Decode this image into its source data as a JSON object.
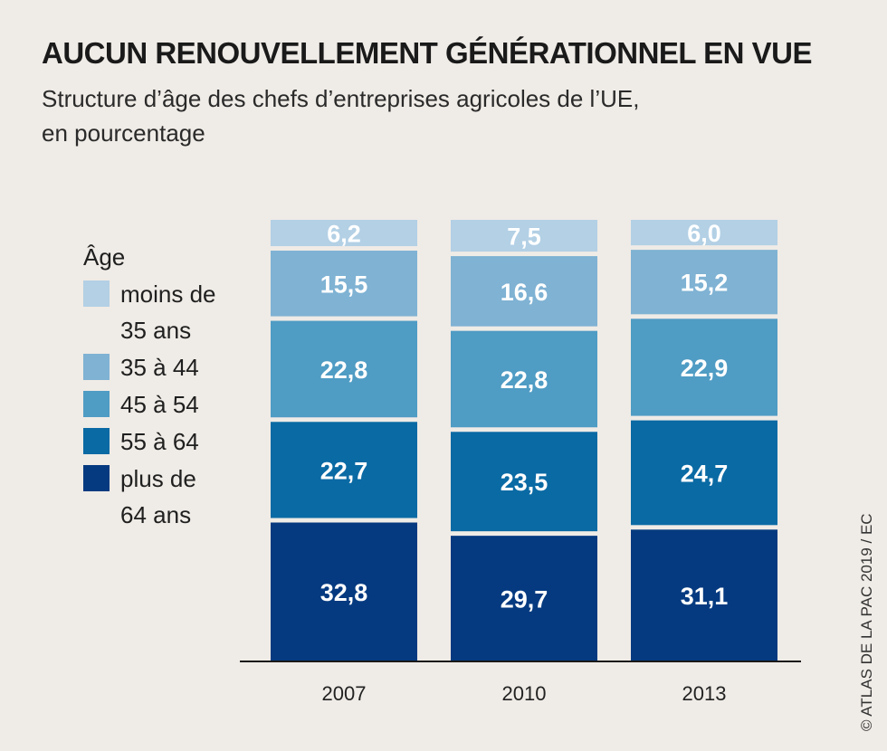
{
  "header": {
    "title": "AUCUN RENOUVELLEMENT GÉNÉRATIONNEL EN VUE",
    "subtitle_line1": "Structure d’âge des chefs d’entreprises agricoles de l’UE,",
    "subtitle_line2": "en pourcentage"
  },
  "credit": "© ATLAS DE LA PAC 2019 / EC",
  "chart_data": {
    "type": "bar",
    "stacked": true,
    "title": "AUCUN RENOUVELLEMENT GÉNÉRATIONNEL EN VUE",
    "subtitle": "Structure d’âge des chefs d’entreprises agricoles de l’UE, en pourcentage",
    "categories": [
      "2007",
      "2010",
      "2013"
    ],
    "legend_title": "Âge",
    "legend_position": "left",
    "grid": false,
    "ylim": [
      0,
      100
    ],
    "series": [
      {
        "name": "plus de 64 ans",
        "legend_lines": [
          "plus de",
          "64 ans"
        ],
        "color": "#053a80",
        "values": [
          32.8,
          29.7,
          31.1
        ],
        "labels": [
          "32,8",
          "29,7",
          "31,1"
        ]
      },
      {
        "name": "55 à 64",
        "legend_lines": [
          "55 à 64"
        ],
        "color": "#0a6aa4",
        "values": [
          22.7,
          23.5,
          24.7
        ],
        "labels": [
          "22,7",
          "23,5",
          "24,7"
        ]
      },
      {
        "name": "45 à 54",
        "legend_lines": [
          "45 à 54"
        ],
        "color": "#4f9cc4",
        "values": [
          22.8,
          22.8,
          22.9
        ],
        "labels": [
          "22,8",
          "22,8",
          "22,9"
        ]
      },
      {
        "name": "35 à 44",
        "legend_lines": [
          "35 à 44"
        ],
        "color": "#7fb2d3",
        "values": [
          15.5,
          16.6,
          15.2
        ],
        "labels": [
          "15,5",
          "16,6",
          "15,2"
        ]
      },
      {
        "name": "moins de 35 ans",
        "legend_lines": [
          "moins de",
          "35 ans"
        ],
        "color": "#b3d0e5",
        "values": [
          6.2,
          7.5,
          6.0
        ],
        "labels": [
          "6,2",
          "7,5",
          "6,0"
        ]
      }
    ]
  }
}
